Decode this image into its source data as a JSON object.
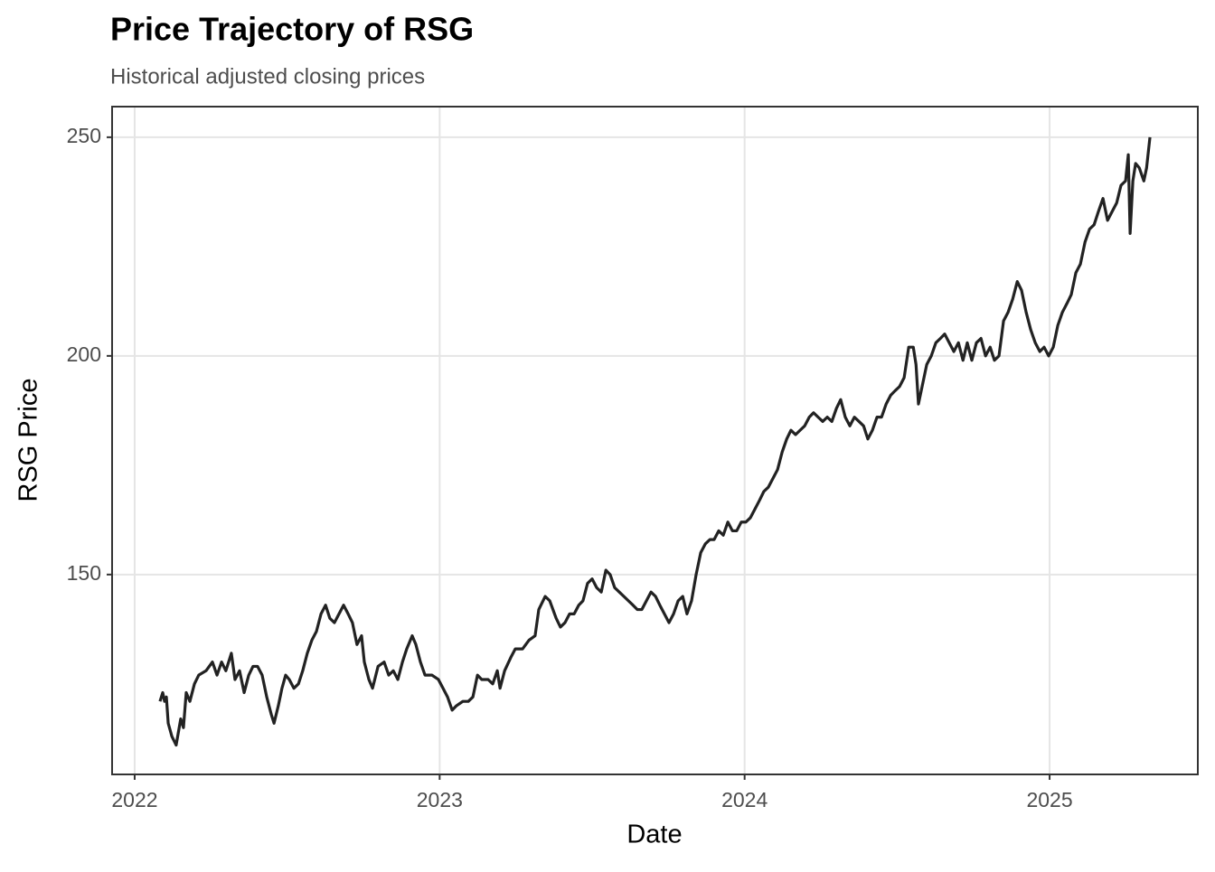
{
  "chart_data": {
    "type": "line",
    "title": "Price Trajectory of RSG",
    "subtitle": "Historical adjusted closing prices",
    "x_label": "Date",
    "y_label": "RSG Price",
    "x": [
      2022.083,
      2022.092,
      2022.098,
      2022.104,
      2022.11,
      2022.122,
      2022.136,
      2022.151,
      2022.16,
      2022.169,
      2022.181,
      2022.196,
      2022.21,
      2022.234,
      2022.255,
      2022.27,
      2022.285,
      2022.299,
      2022.317,
      2022.329,
      2022.344,
      2022.359,
      2022.374,
      2022.388,
      2022.403,
      2022.418,
      2022.433,
      2022.448,
      2022.457,
      2022.471,
      2022.483,
      2022.495,
      2022.507,
      2022.522,
      2022.537,
      2022.551,
      2022.566,
      2022.581,
      2022.596,
      2022.611,
      2022.626,
      2022.64,
      2022.655,
      2022.67,
      2022.685,
      2022.7,
      2022.714,
      2022.729,
      2022.744,
      2022.753,
      2022.768,
      2022.78,
      2022.798,
      2022.818,
      2022.833,
      2022.848,
      2022.863,
      2022.878,
      2022.892,
      2022.91,
      2022.922,
      2022.937,
      2022.952,
      2022.975,
      2022.996,
      2023.011,
      2023.026,
      2023.041,
      2023.055,
      2023.076,
      2023.094,
      2023.109,
      2023.124,
      2023.138,
      2023.159,
      2023.174,
      2023.189,
      2023.198,
      2023.213,
      2023.233,
      2023.248,
      2023.272,
      2023.293,
      2023.313,
      2023.325,
      2023.346,
      2023.361,
      2023.382,
      2023.396,
      2023.411,
      2023.426,
      2023.441,
      2023.456,
      2023.47,
      2023.485,
      2023.5,
      2023.515,
      2023.53,
      2023.545,
      2023.559,
      2023.574,
      2023.589,
      2023.604,
      2023.619,
      2023.634,
      2023.648,
      2023.663,
      2023.678,
      2023.693,
      2023.708,
      2023.722,
      2023.737,
      2023.752,
      2023.767,
      2023.782,
      2023.797,
      2023.811,
      2023.826,
      2023.841,
      2023.856,
      2023.871,
      2023.886,
      2023.9,
      2023.915,
      2023.93,
      2023.945,
      2023.96,
      2023.974,
      2023.989,
      2024.004,
      2024.019,
      2024.034,
      2024.049,
      2024.063,
      2024.078,
      2024.093,
      2024.108,
      2024.123,
      2024.138,
      2024.152,
      2024.167,
      2024.182,
      2024.197,
      2024.212,
      2024.226,
      2024.241,
      2024.256,
      2024.271,
      2024.286,
      2024.301,
      2024.315,
      2024.33,
      2024.345,
      2024.36,
      2024.375,
      2024.39,
      2024.404,
      2024.419,
      2024.434,
      2024.449,
      2024.464,
      2024.479,
      2024.493,
      2024.508,
      2024.523,
      2024.538,
      2024.553,
      2024.562,
      2024.57,
      2024.582,
      2024.597,
      2024.612,
      2024.627,
      2024.642,
      2024.656,
      2024.671,
      2024.686,
      2024.701,
      2024.716,
      2024.73,
      2024.745,
      2024.76,
      2024.775,
      2024.79,
      2024.805,
      2024.819,
      2024.834,
      2024.849,
      2024.864,
      2024.879,
      2024.894,
      2024.908,
      2024.923,
      2024.938,
      2024.953,
      2024.968,
      2024.982,
      2024.997,
      2025.012,
      2025.027,
      2025.042,
      2025.057,
      2025.071,
      2025.086,
      2025.101,
      2025.116,
      2025.131,
      2025.146,
      2025.16,
      2025.175,
      2025.19,
      2025.205,
      2025.22,
      2025.234,
      2025.249,
      2025.258,
      2025.264,
      2025.273,
      2025.282,
      2025.294,
      2025.309,
      2025.318,
      2025.329
    ],
    "series": [
      {
        "color": "#222222",
        "values": [
          121,
          123,
          121,
          122,
          116,
          113,
          111,
          117,
          115,
          123,
          121,
          125,
          127,
          128,
          130,
          127,
          130,
          128,
          132,
          126,
          128,
          123,
          127,
          129,
          129,
          127,
          122,
          118,
          116,
          120,
          124,
          127,
          126,
          124,
          125,
          128,
          132,
          135,
          137,
          141,
          143,
          140,
          139,
          141,
          143,
          141,
          139,
          134,
          136,
          130,
          126,
          124,
          129,
          130,
          127,
          128,
          126,
          130,
          133,
          136,
          134,
          130,
          127,
          127,
          126,
          124,
          122,
          119,
          120,
          121,
          121,
          122,
          127,
          126,
          126,
          125,
          128,
          124,
          128,
          131,
          133,
          133,
          135,
          136,
          142,
          145,
          144,
          140,
          138,
          139,
          141,
          141,
          143,
          144,
          148,
          149,
          147,
          146,
          151,
          150,
          147,
          146,
          145,
          144,
          143,
          142,
          142,
          144,
          146,
          145,
          143,
          141,
          139,
          141,
          144,
          145,
          141,
          144,
          150,
          155,
          157,
          158,
          158,
          160,
          159,
          162,
          160,
          160,
          162,
          162,
          163,
          165,
          167,
          169,
          170,
          172,
          174,
          178,
          181,
          183,
          182,
          183,
          184,
          186,
          187,
          186,
          185,
          186,
          185,
          188,
          190,
          186,
          184,
          186,
          185,
          184,
          181,
          183,
          186,
          186,
          189,
          191,
          192,
          193,
          195,
          202,
          202,
          198,
          189,
          193,
          198,
          200,
          203,
          204,
          205,
          203,
          201,
          203,
          199,
          203,
          199,
          203,
          204,
          200,
          202,
          199,
          200,
          208,
          210,
          213,
          217,
          215,
          210,
          206,
          203,
          201,
          202,
          200,
          202,
          207,
          210,
          212,
          214,
          219,
          221,
          226,
          229,
          230,
          233,
          236,
          231,
          233,
          235,
          239,
          240,
          246,
          228,
          240,
          244,
          243,
          240,
          243,
          250
        ]
      }
    ],
    "xlim": [
      2021.926,
      2025.486
    ],
    "ylim": [
      104.3,
      257.0
    ],
    "xticks": [
      2022,
      2023,
      2024,
      2025
    ],
    "yticks": [
      150,
      200,
      250
    ],
    "grid": true
  }
}
